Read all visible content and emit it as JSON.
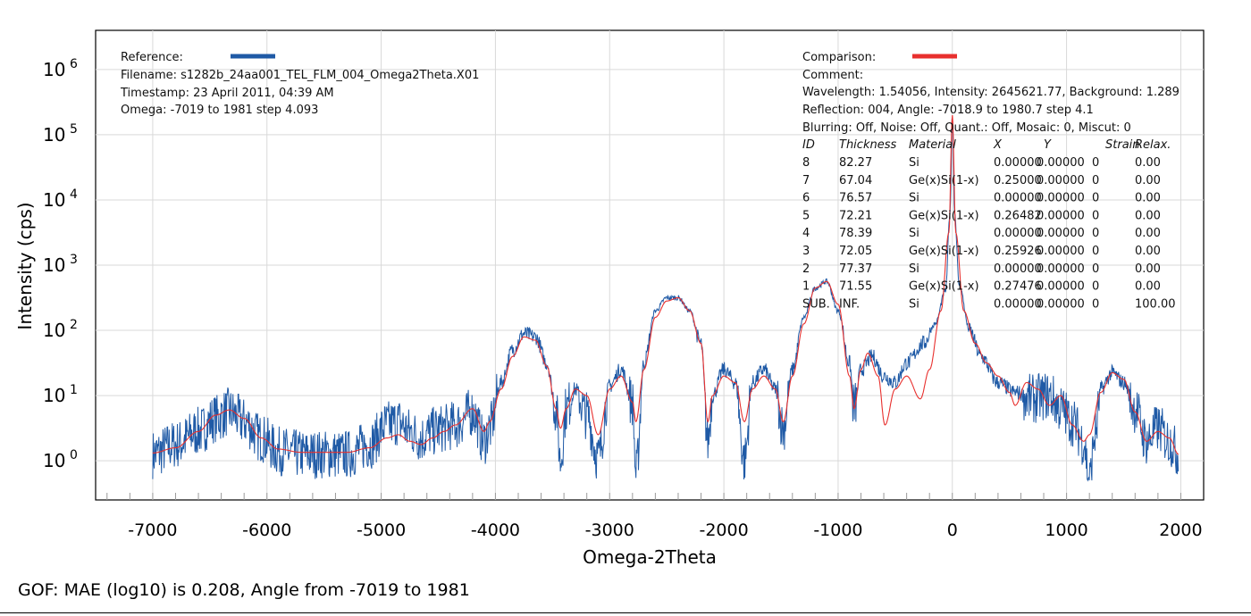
{
  "chart_data": {
    "type": "line",
    "xlabel": "Omega-2Theta",
    "ylabel": "Intensity (cps)",
    "xlim": [
      -7500,
      2200
    ],
    "ylog_exponent_range": [
      -0.6,
      6.6
    ],
    "x_ticks": [
      -7000,
      -6000,
      -5000,
      -4000,
      -3000,
      -2000,
      -1000,
      0,
      1000,
      2000
    ],
    "x_tick_labels": [
      "-7000",
      "-6000",
      "-5000",
      "-4000",
      "-3000",
      "-2000",
      "-1000",
      "0",
      "1000",
      "2000"
    ],
    "y_tick_base": "10",
    "y_tick_exponents": [
      "0",
      "1",
      "2",
      "3",
      "4",
      "5",
      "6"
    ],
    "series": [
      {
        "name": "Reference",
        "color": "#1f5aa6",
        "style": "noisy measured scan",
        "points_log10": [
          [
            -7000,
            0.1
          ],
          [
            -6800,
            0.25
          ],
          [
            -6600,
            0.45
          ],
          [
            -6450,
            0.65
          ],
          [
            -6330,
            0.75
          ],
          [
            -6200,
            0.6
          ],
          [
            -6050,
            0.35
          ],
          [
            -5900,
            0.15
          ],
          [
            -5700,
            0.1
          ],
          [
            -5500,
            0.1
          ],
          [
            -5300,
            0.1
          ],
          [
            -5100,
            0.25
          ],
          [
            -4950,
            0.55
          ],
          [
            -4850,
            0.6
          ],
          [
            -4750,
            0.45
          ],
          [
            -4650,
            0.35
          ],
          [
            -4550,
            0.45
          ],
          [
            -4450,
            0.5
          ],
          [
            -4350,
            0.55
          ],
          [
            -4200,
            0.75
          ],
          [
            -4100,
            0.3
          ],
          [
            -4050,
            0.5
          ],
          [
            -3950,
            1.2
          ],
          [
            -3850,
            1.7
          ],
          [
            -3750,
            1.95
          ],
          [
            -3650,
            1.9
          ],
          [
            -3550,
            1.5
          ],
          [
            -3470,
            0.8
          ],
          [
            -3430,
            0.0
          ],
          [
            -3380,
            0.8
          ],
          [
            -3300,
            1.1
          ],
          [
            -3200,
            0.7
          ],
          [
            -3100,
            0.05
          ],
          [
            -3000,
            1.15
          ],
          [
            -2900,
            1.4
          ],
          [
            -2800,
            0.9
          ],
          [
            -2770,
            -0.2
          ],
          [
            -2700,
            1.5
          ],
          [
            -2600,
            2.3
          ],
          [
            -2500,
            2.5
          ],
          [
            -2400,
            2.5
          ],
          [
            -2300,
            2.3
          ],
          [
            -2200,
            1.8
          ],
          [
            -2140,
            0.3
          ],
          [
            -2100,
            1.0
          ],
          [
            -2000,
            1.4
          ],
          [
            -1900,
            1.2
          ],
          [
            -1820,
            0.0
          ],
          [
            -1750,
            1.2
          ],
          [
            -1650,
            1.4
          ],
          [
            -1550,
            1.1
          ],
          [
            -1480,
            0.5
          ],
          [
            -1400,
            1.4
          ],
          [
            -1300,
            2.2
          ],
          [
            -1200,
            2.65
          ],
          [
            -1100,
            2.75
          ],
          [
            -1000,
            2.3
          ],
          [
            -900,
            1.5
          ],
          [
            -860,
            0.8
          ],
          [
            -800,
            1.4
          ],
          [
            -700,
            1.6
          ],
          [
            -600,
            1.3
          ],
          [
            -500,
            1.2
          ],
          [
            -400,
            1.5
          ],
          [
            -250,
            1.8
          ],
          [
            -150,
            2.1
          ],
          [
            -60,
            2.6
          ],
          [
            -20,
            3.8
          ],
          [
            0,
            5.3
          ],
          [
            20,
            3.8
          ],
          [
            60,
            2.7
          ],
          [
            150,
            2.0
          ],
          [
            250,
            1.6
          ],
          [
            400,
            1.2
          ],
          [
            550,
            1.05
          ],
          [
            700,
            0.95
          ],
          [
            850,
            1.0
          ],
          [
            950,
            0.8
          ],
          [
            1050,
            0.6
          ],
          [
            1150,
            0.3
          ],
          [
            1200,
            -0.3
          ],
          [
            1250,
            0.4
          ],
          [
            1300,
            1.1
          ],
          [
            1400,
            1.35
          ],
          [
            1500,
            1.2
          ],
          [
            1600,
            0.8
          ],
          [
            1700,
            0.3
          ],
          [
            1800,
            0.5
          ],
          [
            1900,
            0.3
          ],
          [
            1980,
            0.1
          ]
        ]
      },
      {
        "name": "Comparison",
        "color": "#e8302e",
        "style": "smooth simulation",
        "points_log10": [
          [
            -7000,
            0.12
          ],
          [
            -6800,
            0.2
          ],
          [
            -6600,
            0.45
          ],
          [
            -6450,
            0.7
          ],
          [
            -6330,
            0.78
          ],
          [
            -6200,
            0.65
          ],
          [
            -6050,
            0.35
          ],
          [
            -5900,
            0.18
          ],
          [
            -5700,
            0.13
          ],
          [
            -5500,
            0.13
          ],
          [
            -5300,
            0.13
          ],
          [
            -5100,
            0.2
          ],
          [
            -4950,
            0.35
          ],
          [
            -4850,
            0.4
          ],
          [
            -4750,
            0.3
          ],
          [
            -4650,
            0.25
          ],
          [
            -4550,
            0.35
          ],
          [
            -4450,
            0.45
          ],
          [
            -4350,
            0.55
          ],
          [
            -4200,
            0.8
          ],
          [
            -4100,
            0.45
          ],
          [
            -4050,
            0.6
          ],
          [
            -3950,
            1.1
          ],
          [
            -3850,
            1.6
          ],
          [
            -3750,
            1.9
          ],
          [
            -3650,
            1.85
          ],
          [
            -3550,
            1.45
          ],
          [
            -3470,
            0.8
          ],
          [
            -3430,
            0.5
          ],
          [
            -3380,
            0.8
          ],
          [
            -3300,
            1.1
          ],
          [
            -3200,
            1.0
          ],
          [
            -3100,
            0.4
          ],
          [
            -3000,
            1.1
          ],
          [
            -2900,
            1.3
          ],
          [
            -2800,
            0.9
          ],
          [
            -2770,
            0.6
          ],
          [
            -2700,
            1.4
          ],
          [
            -2600,
            2.2
          ],
          [
            -2500,
            2.45
          ],
          [
            -2400,
            2.5
          ],
          [
            -2300,
            2.3
          ],
          [
            -2200,
            1.8
          ],
          [
            -2140,
            0.6
          ],
          [
            -2100,
            1.0
          ],
          [
            -2000,
            1.3
          ],
          [
            -1900,
            1.2
          ],
          [
            -1820,
            0.6
          ],
          [
            -1750,
            1.1
          ],
          [
            -1650,
            1.3
          ],
          [
            -1550,
            1.1
          ],
          [
            -1480,
            0.6
          ],
          [
            -1400,
            1.3
          ],
          [
            -1300,
            2.1
          ],
          [
            -1200,
            2.65
          ],
          [
            -1100,
            2.75
          ],
          [
            -1000,
            2.4
          ],
          [
            -900,
            1.3
          ],
          [
            -860,
            0.8
          ],
          [
            -800,
            1.4
          ],
          [
            -740,
            1.65
          ],
          [
            -650,
            1.3
          ],
          [
            -590,
            0.55
          ],
          [
            -500,
            1.1
          ],
          [
            -400,
            1.3
          ],
          [
            -280,
            0.95
          ],
          [
            -200,
            1.4
          ],
          [
            -100,
            2.3
          ],
          [
            -30,
            3.5
          ],
          [
            0,
            5.3
          ],
          [
            30,
            3.5
          ],
          [
            100,
            2.3
          ],
          [
            200,
            1.8
          ],
          [
            300,
            1.5
          ],
          [
            400,
            1.3
          ],
          [
            500,
            1.05
          ],
          [
            550,
            0.85
          ],
          [
            650,
            1.2
          ],
          [
            750,
            1.1
          ],
          [
            850,
            0.85
          ],
          [
            950,
            1.0
          ],
          [
            1050,
            0.55
          ],
          [
            1150,
            0.3
          ],
          [
            1200,
            0.4
          ],
          [
            1300,
            1.05
          ],
          [
            1400,
            1.35
          ],
          [
            1500,
            1.25
          ],
          [
            1600,
            0.75
          ],
          [
            1700,
            0.3
          ],
          [
            1800,
            0.45
          ],
          [
            1900,
            0.35
          ],
          [
            1980,
            0.1
          ]
        ]
      }
    ]
  },
  "reference_box": {
    "title": "Reference:",
    "filename": "Filename: s1282b_24aa001_TEL_FLM_004_Omega2Theta.X01",
    "timestamp": "Timestamp: 23 April 2011, 04:39 AM",
    "omega": "Omega: -7019 to 1981 step 4.093"
  },
  "comparison_box": {
    "title": "Comparison:",
    "comment": "Comment:",
    "wavelength": "Wavelength: 1.54056, Intensity: 2645621.77, Background: 1.289",
    "reflection": "Reflection: 004, Angle: -7018.9 to 1980.7 step 4.1",
    "blurring": "Blurring: Off, Noise: Off, Quant.: Off, Mosaic: 0, Miscut: 0",
    "columns": [
      "ID",
      "Thickness",
      "Material",
      "X",
      "Y",
      "Strain",
      "Relax."
    ],
    "rows": [
      [
        "8",
        "82.27",
        "Si",
        "0.00000",
        "0.00000",
        "0",
        "0.00"
      ],
      [
        "7",
        "67.04",
        "Ge(x)Si(1-x)",
        "0.25000",
        "0.00000",
        "0",
        "0.00"
      ],
      [
        "6",
        "76.57",
        "Si",
        "0.00000",
        "0.00000",
        "0",
        "0.00"
      ],
      [
        "5",
        "72.21",
        "Ge(x)Si(1-x)",
        "0.26482",
        "0.00000",
        "0",
        "0.00"
      ],
      [
        "4",
        "78.39",
        "Si",
        "0.00000",
        "0.00000",
        "0",
        "0.00"
      ],
      [
        "3",
        "72.05",
        "Ge(x)Si(1-x)",
        "0.25926",
        "0.00000",
        "0",
        "0.00"
      ],
      [
        "2",
        "77.37",
        "Si",
        "0.00000",
        "0.00000",
        "0",
        "0.00"
      ],
      [
        "1",
        "71.55",
        "Ge(x)Si(1-x)",
        "0.27476",
        "0.00000",
        "0",
        "0.00"
      ],
      [
        "SUB.",
        "INF.",
        "Si",
        "0.00000",
        "0.00000",
        "0",
        "100.00"
      ]
    ]
  },
  "gof": "GOF: MAE (log10) is 0.208, Angle from -7019 to 1981"
}
